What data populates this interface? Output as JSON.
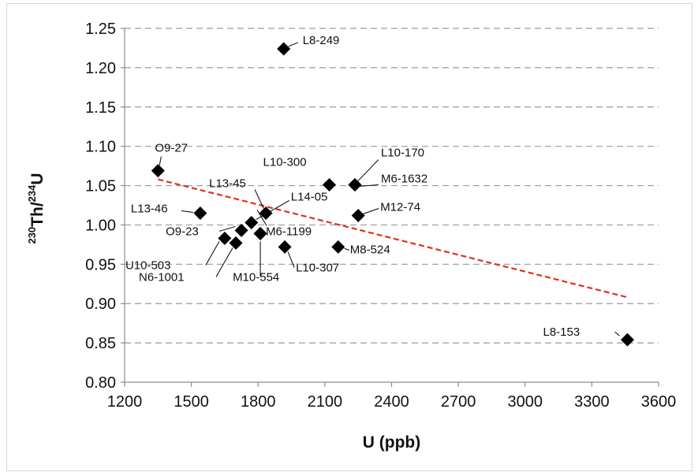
{
  "chart_data": {
    "type": "scatter",
    "title": "",
    "xlabel": "U (ppb)",
    "ylabel": {
      "sup1": "230",
      "part1": "Th/",
      "sup2": "234",
      "part2": "U"
    },
    "xlim": [
      1200,
      3600
    ],
    "ylim": [
      0.8,
      1.25
    ],
    "xticks": [
      "1200",
      "1500",
      "1800",
      "2100",
      "2400",
      "2700",
      "3000",
      "3300",
      "3600"
    ],
    "yticks": [
      "0.80",
      "0.85",
      "0.90",
      "0.95",
      "1.00",
      "1.05",
      "1.10",
      "1.15",
      "1.20",
      "1.25"
    ],
    "grid": "horizontal dashed",
    "marker": "black diamond",
    "points": [
      {
        "label": "L8-249",
        "x": 1915,
        "y": 1.224
      },
      {
        "label": "O9-27",
        "x": 1350,
        "y": 1.069
      },
      {
        "label": "L10-300",
        "x": 2120,
        "y": 1.051
      },
      {
        "label": "L10-170",
        "x": 2235,
        "y": 1.051
      },
      {
        "label": "M6-1632",
        "x": 2235,
        "y": 1.051
      },
      {
        "label": "M12-74",
        "x": 2250,
        "y": 1.012
      },
      {
        "label": "L13-46",
        "x": 1540,
        "y": 1.015
      },
      {
        "label": "L13-45",
        "x": 1835,
        "y": 1.015
      },
      {
        "label": "L14-05",
        "x": 1770,
        "y": 1.003
      },
      {
        "label": "O9-23",
        "x": 1725,
        "y": 0.993
      },
      {
        "label": "M6-1199",
        "x": 1810,
        "y": 0.989
      },
      {
        "label": "U10-503",
        "x": 1650,
        "y": 0.983
      },
      {
        "label": "N6-1001",
        "x": 1700,
        "y": 0.977
      },
      {
        "label": "M10-554",
        "x": 1810,
        "y": 0.989
      },
      {
        "label": "L10-307",
        "x": 1920,
        "y": 0.972
      },
      {
        "label": "M8-524",
        "x": 2160,
        "y": 0.972
      },
      {
        "label": "L8-153",
        "x": 3460,
        "y": 0.854
      }
    ],
    "trendline": {
      "style": "red dashed",
      "color": "#e0301e",
      "x": [
        1350,
        3460
      ],
      "y": [
        1.058,
        0.908
      ]
    }
  }
}
